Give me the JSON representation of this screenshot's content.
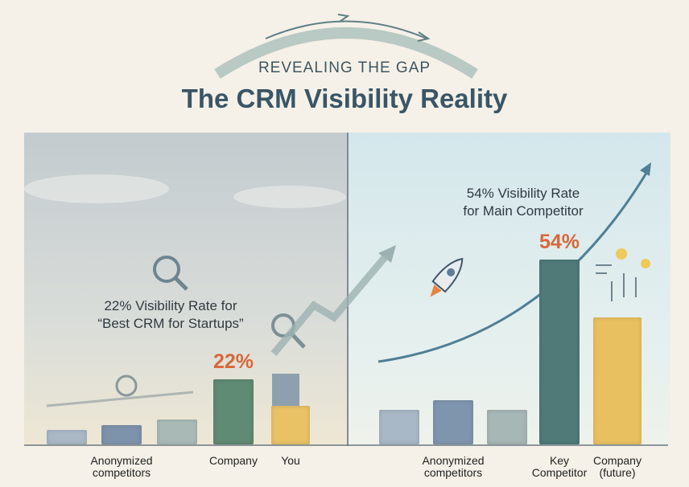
{
  "kicker": "REVEALING THE GAP",
  "title": "The CRM Visibility Reality",
  "chart_data": [
    {
      "type": "bar",
      "annotation": [
        "22% Visibility Rate for",
        "“Best CRM for Startups”"
      ],
      "categories": [
        null,
        "Anonymized competitors",
        null,
        "Company",
        "You"
      ],
      "values": [
        5,
        6.5,
        8.5,
        22,
        13
      ],
      "value_labels": [
        null,
        null,
        null,
        "22%",
        null
      ],
      "colors": [
        "#aab8c6",
        "#7d93ab",
        "#a9bab6",
        "#5f8a73",
        "#e9c266"
      ],
      "ylim": [
        0,
        105
      ]
    },
    {
      "type": "bar",
      "annotation": [
        "54% Visibility Rate",
        "for Main Competitor"
      ],
      "categories": [
        null,
        "Anonymized\ncompetitors",
        null,
        "Key\nCompetitor",
        "Company\n(future)"
      ],
      "values": [
        10,
        13,
        10,
        54,
        37
      ],
      "value_labels": [
        null,
        null,
        null,
        "54%",
        null
      ],
      "colors": [
        "#a8b8c6",
        "#7f95ad",
        "#a7b7b5",
        "#4f7a78",
        "#e8c060"
      ],
      "ylim": [
        0,
        91
      ]
    }
  ]
}
